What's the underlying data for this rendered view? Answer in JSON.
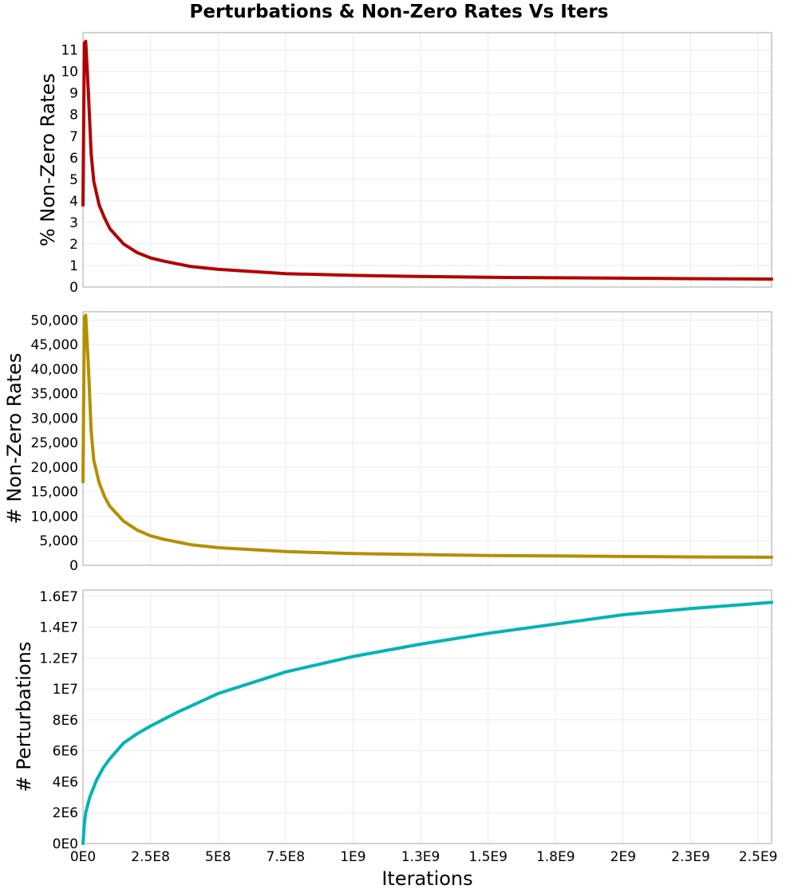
{
  "title": "Perturbations & Non-Zero Rates Vs Iters",
  "chart_data": [
    {
      "type": "line",
      "title": "Perturbations & Non-Zero Rates Vs Iters",
      "xlabel": "",
      "ylabel": "% Non-Zero Rates",
      "color": "#b30000",
      "xlim": [
        0,
        2550000000
      ],
      "ylim": [
        0,
        11.8
      ],
      "grid": true,
      "yticks": [
        0,
        1,
        2,
        3,
        4,
        5,
        6,
        7,
        8,
        9,
        10,
        11
      ],
      "ytick_labels": [
        "0",
        "1",
        "2",
        "3",
        "4",
        "5",
        "6",
        "7",
        "8",
        "9",
        "10",
        "11"
      ],
      "x": [
        0,
        5000000,
        10000000,
        20000000,
        30000000,
        40000000,
        60000000,
        80000000,
        100000000,
        150000000,
        200000000,
        250000000,
        300000000,
        400000000,
        500000000,
        750000000,
        1000000000,
        1250000000,
        1500000000,
        1750000000,
        2000000000,
        2250000000,
        2550000000
      ],
      "values": [
        3.8,
        11.3,
        11.4,
        9.0,
        6.2,
        4.9,
        3.8,
        3.2,
        2.7,
        2.0,
        1.6,
        1.35,
        1.2,
        0.95,
        0.82,
        0.62,
        0.54,
        0.49,
        0.45,
        0.43,
        0.41,
        0.39,
        0.37
      ]
    },
    {
      "type": "line",
      "xlabel": "",
      "ylabel": "# Non-Zero Rates",
      "color": "#b38f00",
      "xlim": [
        0,
        2550000000
      ],
      "ylim": [
        0,
        51700
      ],
      "grid": true,
      "yticks": [
        0,
        5000,
        10000,
        15000,
        20000,
        25000,
        30000,
        35000,
        40000,
        45000,
        50000
      ],
      "ytick_labels": [
        "0",
        "5,000",
        "10,000",
        "15,000",
        "20,000",
        "25,000",
        "30,000",
        "35,000",
        "40,000",
        "45,000",
        "50,000"
      ],
      "x": [
        0,
        5000000,
        10000000,
        20000000,
        30000000,
        40000000,
        60000000,
        80000000,
        100000000,
        150000000,
        200000000,
        250000000,
        300000000,
        400000000,
        500000000,
        750000000,
        1000000000,
        1250000000,
        1500000000,
        1750000000,
        2000000000,
        2250000000,
        2550000000
      ],
      "values": [
        17000,
        50500,
        51000,
        40500,
        27500,
        21500,
        16800,
        14000,
        12000,
        9000,
        7200,
        6000,
        5300,
        4200,
        3600,
        2800,
        2400,
        2200,
        2000,
        1900,
        1800,
        1700,
        1650
      ]
    },
    {
      "type": "line",
      "xlabel": "Iterations",
      "ylabel": "# Perturbations",
      "color": "#00b3b3",
      "xlim": [
        0,
        2550000000
      ],
      "ylim": [
        0,
        16400000
      ],
      "grid": true,
      "yticks": [
        0,
        2000000,
        4000000,
        6000000,
        8000000,
        10000000,
        12000000,
        14000000,
        16000000
      ],
      "ytick_labels": [
        "0E0",
        "2E6",
        "4E6",
        "6E6",
        "8E6",
        "1E7",
        "1.2E7",
        "1.4E7",
        "1.6E7"
      ],
      "xticks": [
        0,
        250000000,
        500000000,
        750000000,
        1000000000,
        1250000000,
        1500000000,
        1750000000,
        2000000000,
        2250000000,
        2500000000
      ],
      "xtick_labels": [
        "0E0",
        "2.5E8",
        "5E8",
        "7.5E8",
        "1E9",
        "1.3E9",
        "1.5E9",
        "1.8E9",
        "2E9",
        "2.3E9",
        "2.5E9"
      ],
      "x": [
        0,
        5000000,
        10000000,
        25000000,
        50000000,
        75000000,
        100000000,
        150000000,
        200000000,
        250000000,
        350000000,
        500000000,
        750000000,
        1000000000,
        1250000000,
        1500000000,
        1750000000,
        2000000000,
        2250000000,
        2550000000
      ],
      "values": [
        0,
        1300000,
        2000000,
        3000000,
        4100000,
        4900000,
        5500000,
        6500000,
        7100000,
        7600000,
        8500000,
        9700000,
        11100000,
        12100000,
        12900000,
        13600000,
        14200000,
        14800000,
        15200000,
        15600000
      ]
    }
  ]
}
